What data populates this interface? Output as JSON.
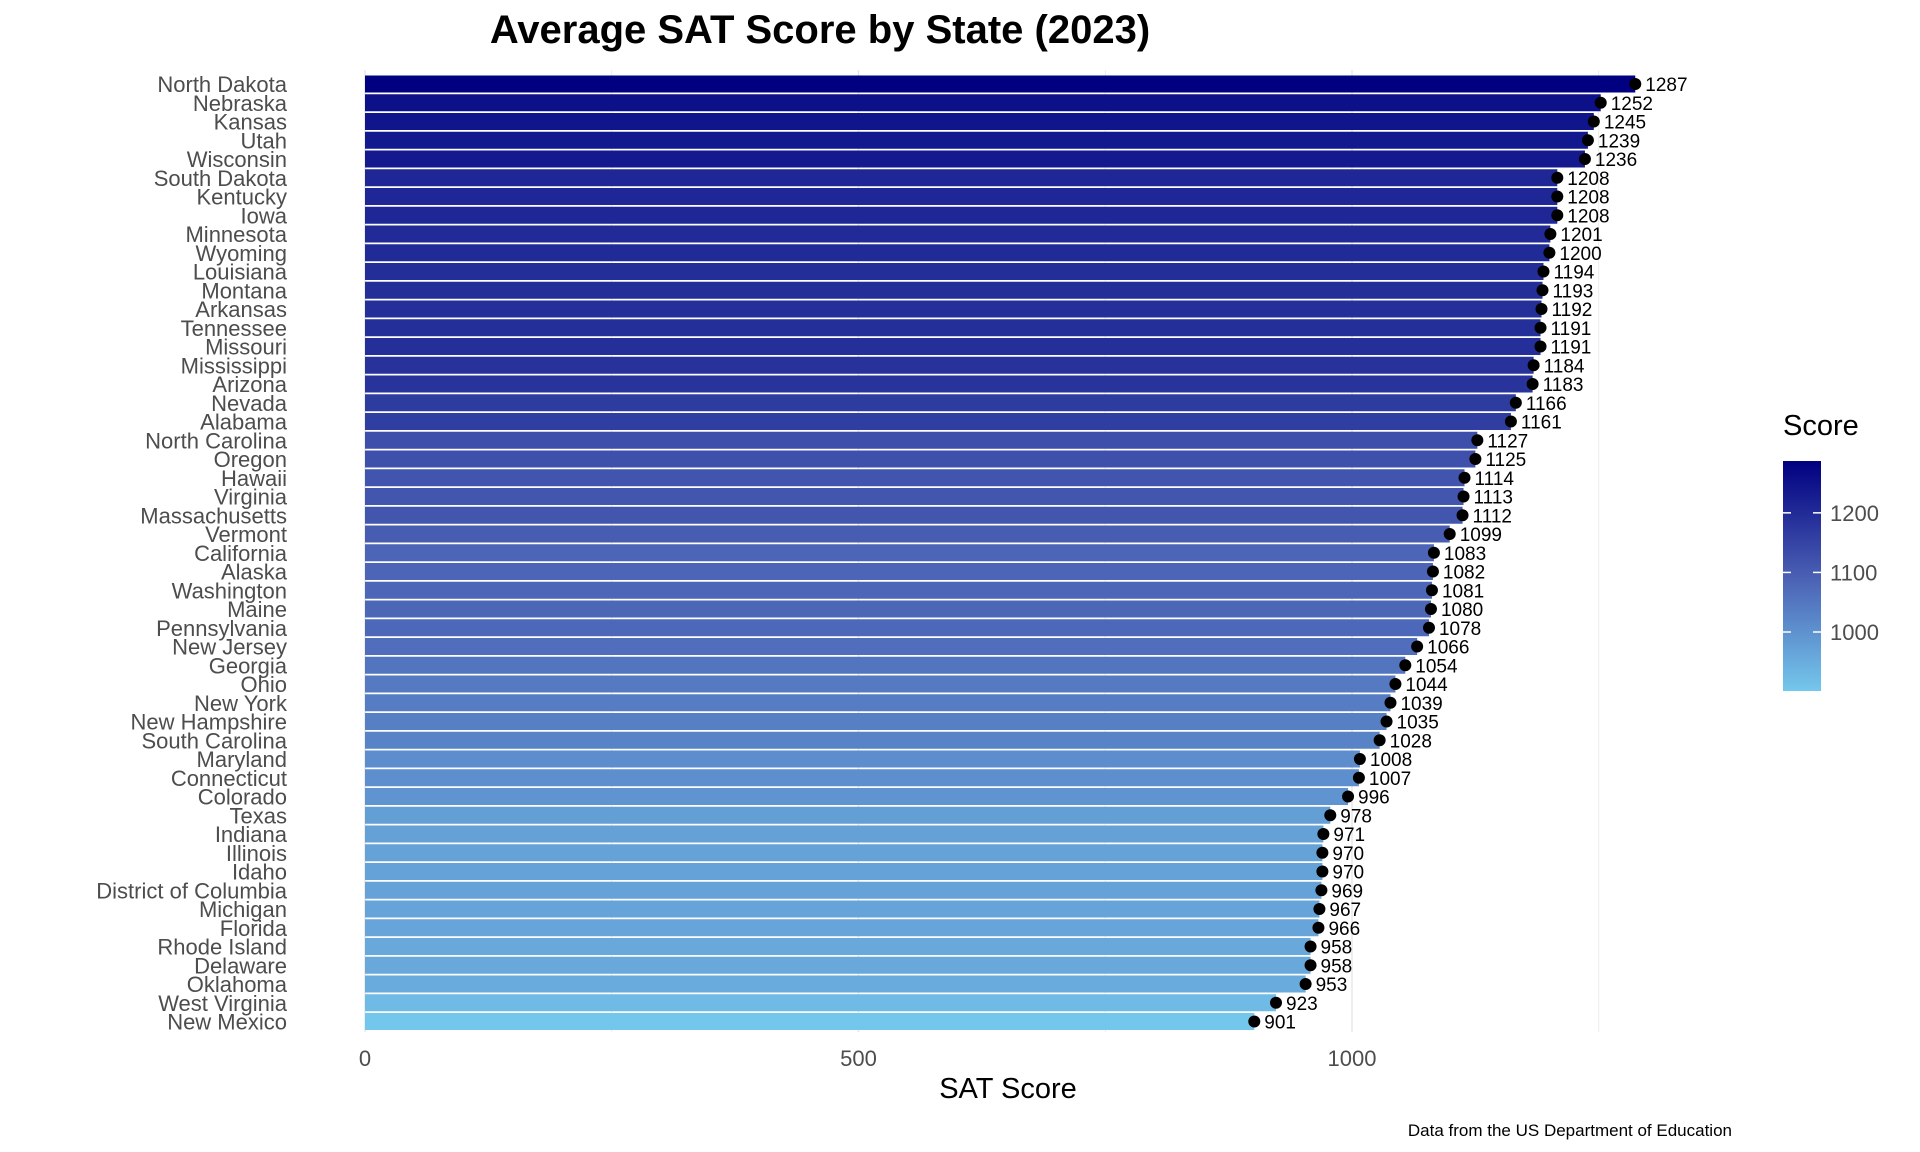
{
  "chart_data": {
    "type": "bar",
    "orientation": "horizontal",
    "title": "Average SAT Score by State (2023)",
    "xlabel": "SAT Score",
    "ylabel": "",
    "xlim": [
      0,
      1420
    ],
    "x_ticks": [
      0,
      500,
      1000
    ],
    "x_tick_labels": [
      "0",
      "500",
      "1000"
    ],
    "grid": true,
    "legend": {
      "title": "Score",
      "placement": "right",
      "ticks": [
        1000,
        1100,
        1200
      ],
      "tick_labels": [
        "1000",
        "1100",
        "1200"
      ],
      "range": [
        901,
        1287
      ],
      "color_low": "#74c7ec",
      "color_high": "#000080"
    },
    "caption": "Data from the US Department of Education",
    "categories": [
      "North Dakota",
      "Nebraska",
      "Kansas",
      "Utah",
      "Wisconsin",
      "South Dakota",
      "Kentucky",
      "Iowa",
      "Minnesota",
      "Wyoming",
      "Louisiana",
      "Montana",
      "Arkansas",
      "Tennessee",
      "Missouri",
      "Mississippi",
      "Arizona",
      "Nevada",
      "Alabama",
      "North Carolina",
      "Oregon",
      "Hawaii",
      "Virginia",
      "Massachusetts",
      "Vermont",
      "California",
      "Alaska",
      "Washington",
      "Maine",
      "Pennsylvania",
      "New Jersey",
      "Georgia",
      "Ohio",
      "New York",
      "New Hampshire",
      "South Carolina",
      "Maryland",
      "Connecticut",
      "Colorado",
      "Texas",
      "Indiana",
      "Illinois",
      "Idaho",
      "District of Columbia",
      "Michigan",
      "Florida",
      "Rhode Island",
      "Delaware",
      "Oklahoma",
      "West Virginia",
      "New Mexico"
    ],
    "values": [
      1287,
      1252,
      1245,
      1239,
      1236,
      1208,
      1208,
      1208,
      1201,
      1200,
      1194,
      1193,
      1192,
      1191,
      1191,
      1184,
      1183,
      1166,
      1161,
      1127,
      1125,
      1114,
      1113,
      1112,
      1099,
      1083,
      1082,
      1081,
      1080,
      1078,
      1066,
      1054,
      1044,
      1039,
      1035,
      1028,
      1008,
      1007,
      996,
      978,
      971,
      970,
      970,
      969,
      967,
      966,
      958,
      958,
      953,
      923,
      901
    ],
    "value_labels": [
      "1287",
      "1252",
      "1245",
      "1239",
      "1236",
      "1208",
      "1208",
      "1208",
      "1201",
      "1200",
      "1194",
      "1193",
      "1192",
      "1191",
      "1191",
      "1184",
      "1183",
      "1166",
      "1161",
      "1127",
      "1125",
      "1114",
      "1113",
      "1112",
      "1099",
      "1083",
      "1082",
      "1081",
      "1080",
      "1078",
      "1066",
      "1054",
      "1044",
      "1039",
      "1035",
      "1028",
      "1008",
      "1007",
      "996",
      "978",
      "971",
      "970",
      "970",
      "969",
      "967",
      "966",
      "958",
      "958",
      "953",
      "923",
      "901"
    ]
  }
}
